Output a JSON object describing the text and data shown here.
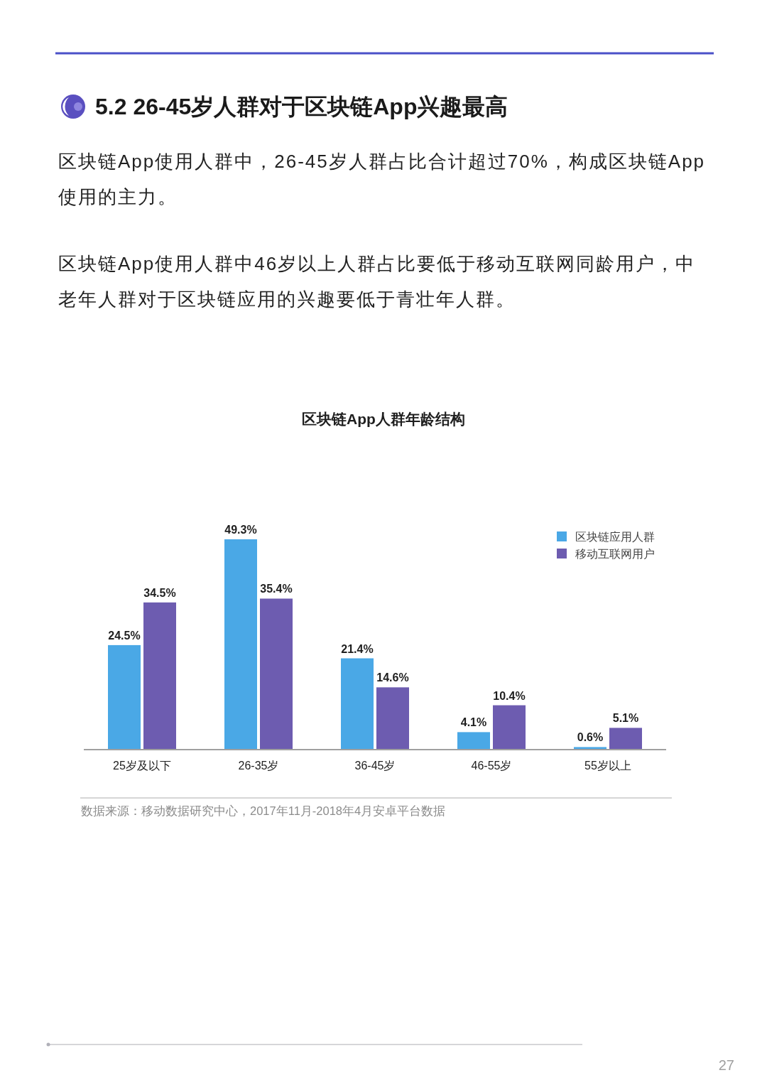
{
  "chart_data": {
    "type": "bar",
    "title": "区块链App人群年龄结构",
    "categories": [
      "25岁及以下",
      "26-35岁",
      "36-45岁",
      "46-55岁",
      "55岁以上"
    ],
    "series": [
      {
        "name": "区块链应用人群",
        "color": "#4aa8e6",
        "values": [
          24.5,
          49.3,
          21.4,
          4.1,
          0.6
        ],
        "value_labels": [
          "24.5%",
          "49.3%",
          "21.4%",
          "4.1%",
          "0.6%"
        ]
      },
      {
        "name": "移动互联网用户",
        "color": "#6d5cb0",
        "values": [
          34.5,
          35.4,
          14.6,
          10.4,
          5.1
        ],
        "value_labels": [
          "34.5%",
          "35.4%",
          "14.6%",
          "10.4%",
          "5.1%"
        ]
      }
    ],
    "legend": "top right",
    "annotations": [
      "5.2 26-45岁人群对于区块链App兴趣最高",
      "区块链App使用人群中，26-45岁人群占比合计超过70%，构成区块链App使用的主力。",
      "区块链App使用人群中46岁以上人群占比要低于移动互联网同龄用户，中老年人群对于区块链应用的兴趣要低于青壮年人群。",
      "数据来源：移动数据研究中心，2017年11月-2018年4月安卓平台数据",
      "27"
    ]
  }
}
